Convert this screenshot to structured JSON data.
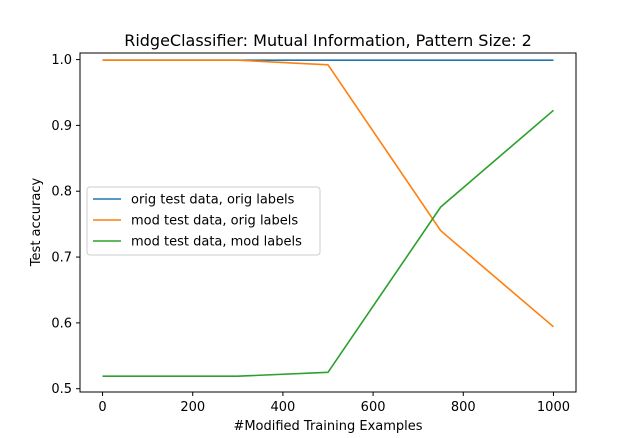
{
  "chart_data": {
    "type": "line",
    "title": "RidgeClassifier: Mutual Information, Pattern Size: 2",
    "xlabel": "#Modified Training Examples",
    "ylabel": "Test accuracy",
    "xlim": [
      -50,
      1050
    ],
    "ylim": [
      0.495,
      1.01
    ],
    "xticks": [
      0,
      200,
      400,
      600,
      800,
      1000
    ],
    "yticks": [
      0.5,
      0.6,
      0.7,
      0.8,
      0.9,
      1.0
    ],
    "xtick_labels": [
      "0",
      "200",
      "400",
      "600",
      "800",
      "1000"
    ],
    "ytick_labels": [
      "0.5",
      "0.6",
      "0.7",
      "0.8",
      "0.9",
      "1.0"
    ],
    "legend_position": "center-left",
    "grid": false,
    "x": [
      0,
      300,
      500,
      750,
      1000
    ],
    "series": [
      {
        "name": "orig test data, orig labels",
        "color": "#1f77b4",
        "values": [
          0.999,
          0.999,
          0.999,
          0.999,
          0.999
        ]
      },
      {
        "name": "mod test data, orig labels",
        "color": "#ff7f0e",
        "values": [
          0.999,
          0.999,
          0.992,
          0.74,
          0.594
        ]
      },
      {
        "name": "mod test data, mod labels",
        "color": "#2ca02c",
        "values": [
          0.519,
          0.519,
          0.525,
          0.776,
          0.923
        ]
      }
    ]
  }
}
